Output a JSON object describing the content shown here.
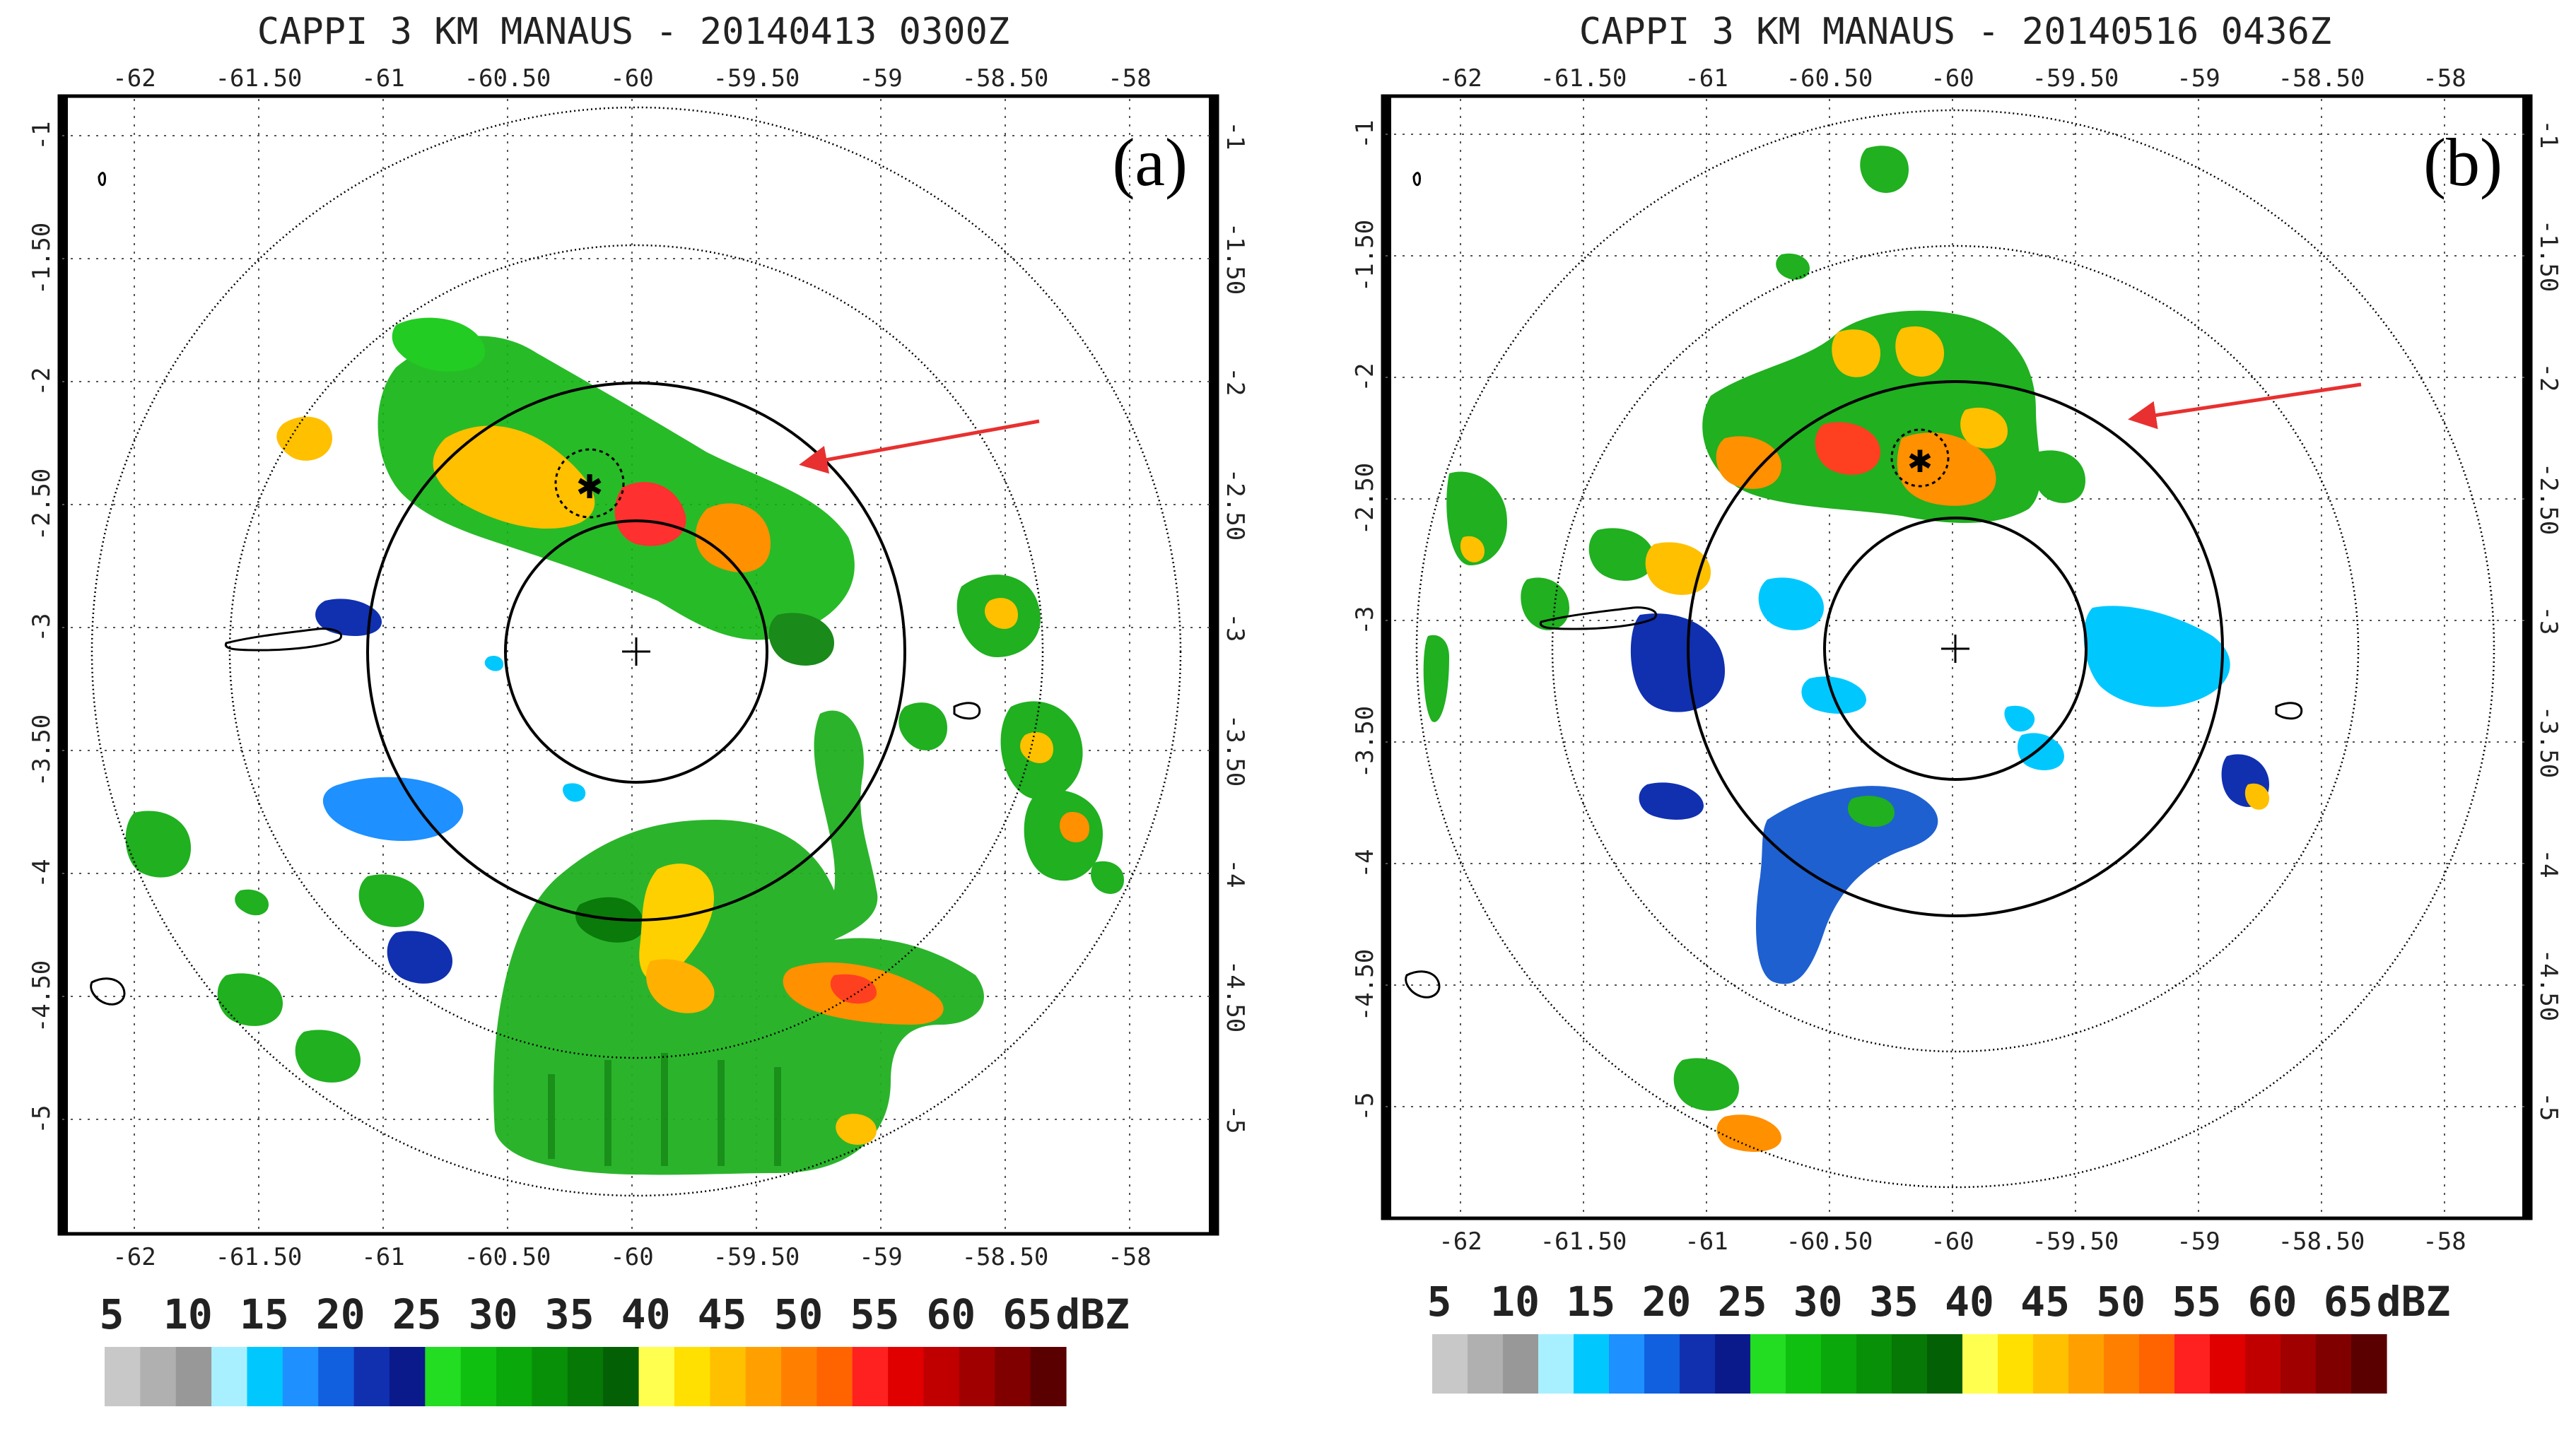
{
  "colors": {
    "background": "#ffffff",
    "frame": "#000000",
    "grid": "#555555",
    "arrow": "#e83030"
  },
  "panels": [
    {
      "title": "CAPPI 3 KM MANAUS - 20140413 0300Z",
      "label": "(a)",
      "lon_ticks": [
        "-62",
        "-61.50",
        "-61",
        "-60.50",
        "-60",
        "-59.50",
        "-59",
        "-58.50",
        "-58"
      ],
      "lat_ticks": [
        "-1",
        "-1.50",
        "-2",
        "-2.50",
        "-3",
        "-3.50",
        "-4",
        "-4.50",
        "-5"
      ],
      "features": [
        "precipitation-echoes",
        "storm-marker",
        "range-rings",
        "red-arrow"
      ]
    },
    {
      "title": "CAPPI 3 KM MANAUS - 20140516 0436Z",
      "label": "(b)",
      "lon_ticks": [
        "-62",
        "-61.50",
        "-61",
        "-60.50",
        "-60",
        "-59.50",
        "-59",
        "-58.50",
        "-58"
      ],
      "lat_ticks": [
        "-1",
        "-1.50",
        "-2",
        "-2.50",
        "-3",
        "-3.50",
        "-4",
        "-4.50",
        "-5"
      ],
      "features": [
        "precipitation-echoes",
        "storm-marker",
        "range-rings",
        "red-arrow"
      ]
    }
  ],
  "colorscale": {
    "labels": [
      "5",
      "10",
      "15",
      "20",
      "25",
      "30",
      "35",
      "40",
      "45",
      "50",
      "55",
      "60",
      "65"
    ],
    "unit": "dBZ",
    "colors": [
      "#c8c8c8",
      "#b0b0b0",
      "#989898",
      "#a8f0ff",
      "#00c8ff",
      "#1e90ff",
      "#1060e0",
      "#1030b0",
      "#0a1a8a",
      "#22dd22",
      "#10c010",
      "#0aa80a",
      "#089008",
      "#067806",
      "#046004",
      "#ffff50",
      "#ffe000",
      "#ffc000",
      "#ffa000",
      "#ff8000",
      "#ff6400",
      "#ff2020",
      "#e00000",
      "#c00000",
      "#a00000",
      "#800000",
      "#5a0000"
    ]
  }
}
